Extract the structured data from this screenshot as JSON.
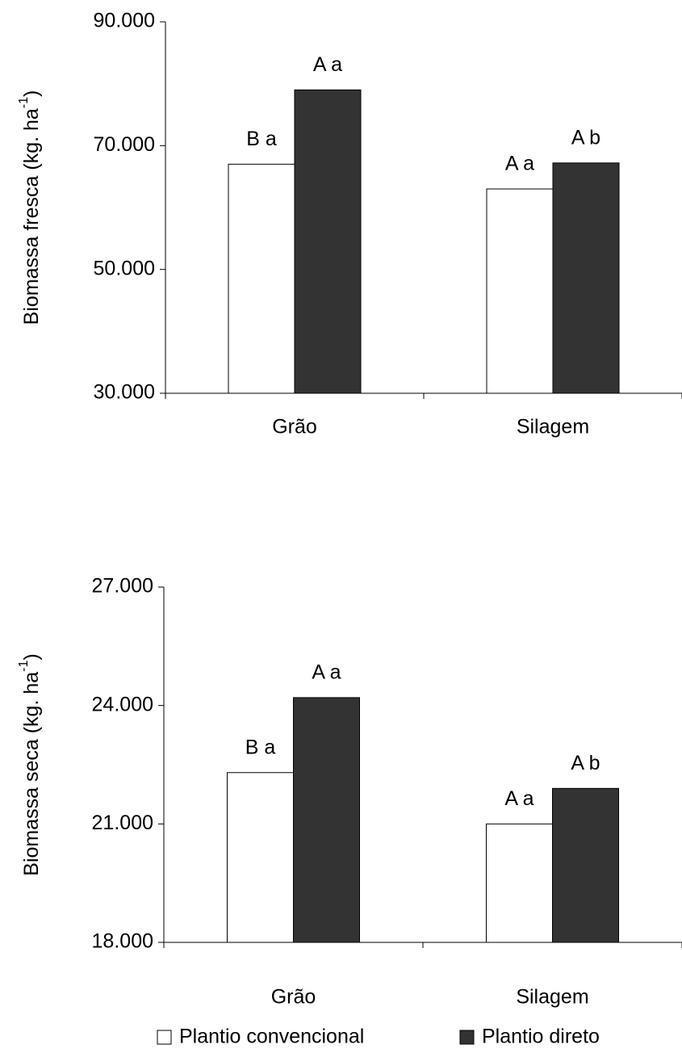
{
  "chart_data": [
    {
      "type": "bar",
      "categories": [
        "Grão",
        "Silagem"
      ],
      "y_label": [
        "Biomassa fresca (kg. ha",
        "-1",
        ")"
      ],
      "ylim": [
        30000,
        90000
      ],
      "yticks": [
        {
          "value": 30000,
          "label": "30.000"
        },
        {
          "value": 50000,
          "label": "50.000"
        },
        {
          "value": 70000,
          "label": "70.000"
        },
        {
          "value": 90000,
          "label": "90.000"
        }
      ],
      "grid": false,
      "series": [
        {
          "name": "Plantio convencional",
          "color": "#ffffff",
          "values": [
            67000,
            63000
          ],
          "labels": [
            "B a",
            "A a"
          ]
        },
        {
          "name": "Plantio direto",
          "color": "#333333",
          "values": [
            79000,
            67200
          ],
          "labels": [
            "A a",
            "A b"
          ]
        }
      ]
    },
    {
      "type": "bar",
      "categories": [
        "Grão",
        "Silagem"
      ],
      "y_label": [
        "Biomassa seca (kg. ha",
        "-1",
        ")"
      ],
      "ylim": [
        18000,
        27000
      ],
      "yticks": [
        {
          "value": 18000,
          "label": "18.000"
        },
        {
          "value": 21000,
          "label": "21.000"
        },
        {
          "value": 24000,
          "label": "24.000"
        },
        {
          "value": 27000,
          "label": "27.000"
        }
      ],
      "grid": false,
      "series": [
        {
          "color": "#ffffff",
          "values": [
            22300,
            21000
          ],
          "labels": [
            "B a",
            "A a"
          ]
        },
        {
          "color": "#333333",
          "values": [
            24200,
            21900
          ],
          "labels": [
            "A a",
            "A b"
          ]
        }
      ]
    }
  ]
}
